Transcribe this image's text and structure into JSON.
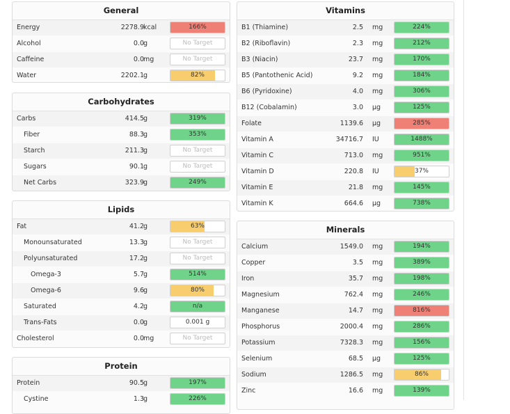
{
  "colors": {
    "green": "#6fd38a",
    "red": "#ee8076",
    "yellow": "#f8cd6e"
  },
  "panels": [
    {
      "id": "general",
      "title": "General",
      "name_x": 6,
      "rows": [
        {
          "name": "Energy",
          "amount": "2278.9",
          "unit": "kcal",
          "pct": "166%",
          "fraction": 1,
          "color": "red"
        },
        {
          "name": "Alcohol",
          "amount": "0.0",
          "unit": "g",
          "pct": "No Target",
          "fraction": 0,
          "color": "none"
        },
        {
          "name": "Caffeine",
          "amount": "0.0",
          "unit": "mg",
          "pct": "No Target",
          "fraction": 0,
          "color": "none"
        },
        {
          "name": "Water",
          "amount": "2202.1",
          "unit": "g",
          "pct": "82%",
          "fraction": 0.82,
          "color": "yellow"
        }
      ]
    },
    {
      "id": "carbohydrates",
      "title": "Carbohydrates",
      "rows": [
        {
          "name": "Carbs",
          "level": 0,
          "amount": "414.5",
          "unit": "g",
          "pct": "319%",
          "fraction": 1,
          "color": "green"
        },
        {
          "name": "Fiber",
          "level": 1,
          "amount": "88.3",
          "unit": "g",
          "pct": "353%",
          "fraction": 1,
          "color": "green"
        },
        {
          "name": "Starch",
          "level": 1,
          "amount": "211.3",
          "unit": "g",
          "pct": "No Target",
          "fraction": 0,
          "color": "none"
        },
        {
          "name": "Sugars",
          "level": 1,
          "amount": "90.1",
          "unit": "g",
          "pct": "No Target",
          "fraction": 0,
          "color": "none"
        },
        {
          "name": "Net Carbs",
          "level": 1,
          "amount": "323.9",
          "unit": "g",
          "pct": "249%",
          "fraction": 1,
          "color": "green"
        }
      ]
    },
    {
      "id": "lipids",
      "title": "Lipids",
      "rows": [
        {
          "name": "Fat",
          "level": 0,
          "amount": "41.2",
          "unit": "g",
          "pct": "63%",
          "fraction": 0.63,
          "color": "yellow"
        },
        {
          "name": "Monounsaturated",
          "level": 1,
          "amount": "13.3",
          "unit": "g",
          "pct": "No Target",
          "fraction": 0,
          "color": "none"
        },
        {
          "name": "Polyunsaturated",
          "level": 1,
          "amount": "17.2",
          "unit": "g",
          "pct": "No Target",
          "fraction": 0,
          "color": "none"
        },
        {
          "name": "Omega-3",
          "level": 2,
          "amount": "5.7",
          "unit": "g",
          "pct": "514%",
          "fraction": 1,
          "color": "green"
        },
        {
          "name": "Omega-6",
          "level": 2,
          "amount": "9.6",
          "unit": "g",
          "pct": "80%",
          "fraction": 0.8,
          "color": "yellow"
        },
        {
          "name": "Saturated",
          "level": 1,
          "amount": "4.2",
          "unit": "g",
          "pct": "n/a",
          "fraction": 1,
          "color": "green"
        },
        {
          "name": "Trans-Fats",
          "level": 1,
          "amount": "0.0",
          "unit": "g",
          "pct": "0.001 g",
          "fraction": 0,
          "color": "none",
          "dark": true
        },
        {
          "name": "Cholesterol",
          "level": 0,
          "amount": "0.0",
          "unit": "mg",
          "pct": "No Target",
          "fraction": 0,
          "color": "none"
        }
      ]
    },
    {
      "id": "protein",
      "title": "Protein",
      "rows": [
        {
          "name": "Protein",
          "level": 0,
          "amount": "90.5",
          "unit": "g",
          "pct": "197%",
          "fraction": 1,
          "color": "green"
        },
        {
          "name": "Cystine",
          "level": 1,
          "amount": "1.3",
          "unit": "g",
          "pct": "226%",
          "fraction": 1,
          "color": "green"
        }
      ]
    },
    {
      "id": "vitamins",
      "title": "Vitamins",
      "rows": [
        {
          "name": "B1 (Thiamine)",
          "amount": "2.5",
          "unit": "mg",
          "pct": "224%",
          "fraction": 1,
          "color": "green"
        },
        {
          "name": "B2 (Riboflavin)",
          "amount": "2.3",
          "unit": "mg",
          "pct": "212%",
          "fraction": 1,
          "color": "green"
        },
        {
          "name": "B3 (Niacin)",
          "amount": "23.7",
          "unit": "mg",
          "pct": "170%",
          "fraction": 1,
          "color": "green"
        },
        {
          "name": "B5 (Pantothenic Acid)",
          "amount": "9.2",
          "unit": "mg",
          "pct": "184%",
          "fraction": 1,
          "color": "green"
        },
        {
          "name": "B6 (Pyridoxine)",
          "amount": "4.0",
          "unit": "mg",
          "pct": "306%",
          "fraction": 1,
          "color": "green"
        },
        {
          "name": "B12 (Cobalamin)",
          "amount": "3.0",
          "unit": "µg",
          "pct": "125%",
          "fraction": 1,
          "color": "green"
        },
        {
          "name": "Folate",
          "amount": "1139.6",
          "unit": "µg",
          "pct": "285%",
          "fraction": 1,
          "color": "red"
        },
        {
          "name": "Vitamin A",
          "amount": "34716.7",
          "unit": "IU",
          "pct": "1488%",
          "fraction": 1,
          "color": "green"
        },
        {
          "name": "Vitamin C",
          "amount": "713.0",
          "unit": "mg",
          "pct": "951%",
          "fraction": 1,
          "color": "green"
        },
        {
          "name": "Vitamin D",
          "amount": "220.8",
          "unit": "IU",
          "pct": "37%",
          "fraction": 0.37,
          "color": "yellow"
        },
        {
          "name": "Vitamin E",
          "amount": "21.8",
          "unit": "mg",
          "pct": "145%",
          "fraction": 1,
          "color": "green"
        },
        {
          "name": "Vitamin K",
          "amount": "664.6",
          "unit": "µg",
          "pct": "738%",
          "fraction": 1,
          "color": "green"
        }
      ]
    },
    {
      "id": "minerals",
      "title": "Minerals",
      "rows": [
        {
          "name": "Calcium",
          "amount": "1549.0",
          "unit": "mg",
          "pct": "194%",
          "fraction": 1,
          "color": "green"
        },
        {
          "name": "Copper",
          "amount": "3.5",
          "unit": "mg",
          "pct": "389%",
          "fraction": 1,
          "color": "green"
        },
        {
          "name": "Iron",
          "amount": "35.7",
          "unit": "mg",
          "pct": "198%",
          "fraction": 1,
          "color": "green"
        },
        {
          "name": "Magnesium",
          "amount": "762.4",
          "unit": "mg",
          "pct": "246%",
          "fraction": 1,
          "color": "green"
        },
        {
          "name": "Manganese",
          "amount": "14.7",
          "unit": "mg",
          "pct": "816%",
          "fraction": 1,
          "color": "red"
        },
        {
          "name": "Phosphorus",
          "amount": "2000.4",
          "unit": "mg",
          "pct": "286%",
          "fraction": 1,
          "color": "green"
        },
        {
          "name": "Potassium",
          "amount": "7328.3",
          "unit": "mg",
          "pct": "156%",
          "fraction": 1,
          "color": "green"
        },
        {
          "name": "Selenium",
          "amount": "68.5",
          "unit": "µg",
          "pct": "125%",
          "fraction": 1,
          "color": "green"
        },
        {
          "name": "Sodium",
          "amount": "1286.5",
          "unit": "mg",
          "pct": "86%",
          "fraction": 0.86,
          "color": "yellow"
        },
        {
          "name": "Zinc",
          "amount": "16.6",
          "unit": "mg",
          "pct": "139%",
          "fraction": 1,
          "color": "green"
        }
      ]
    }
  ]
}
